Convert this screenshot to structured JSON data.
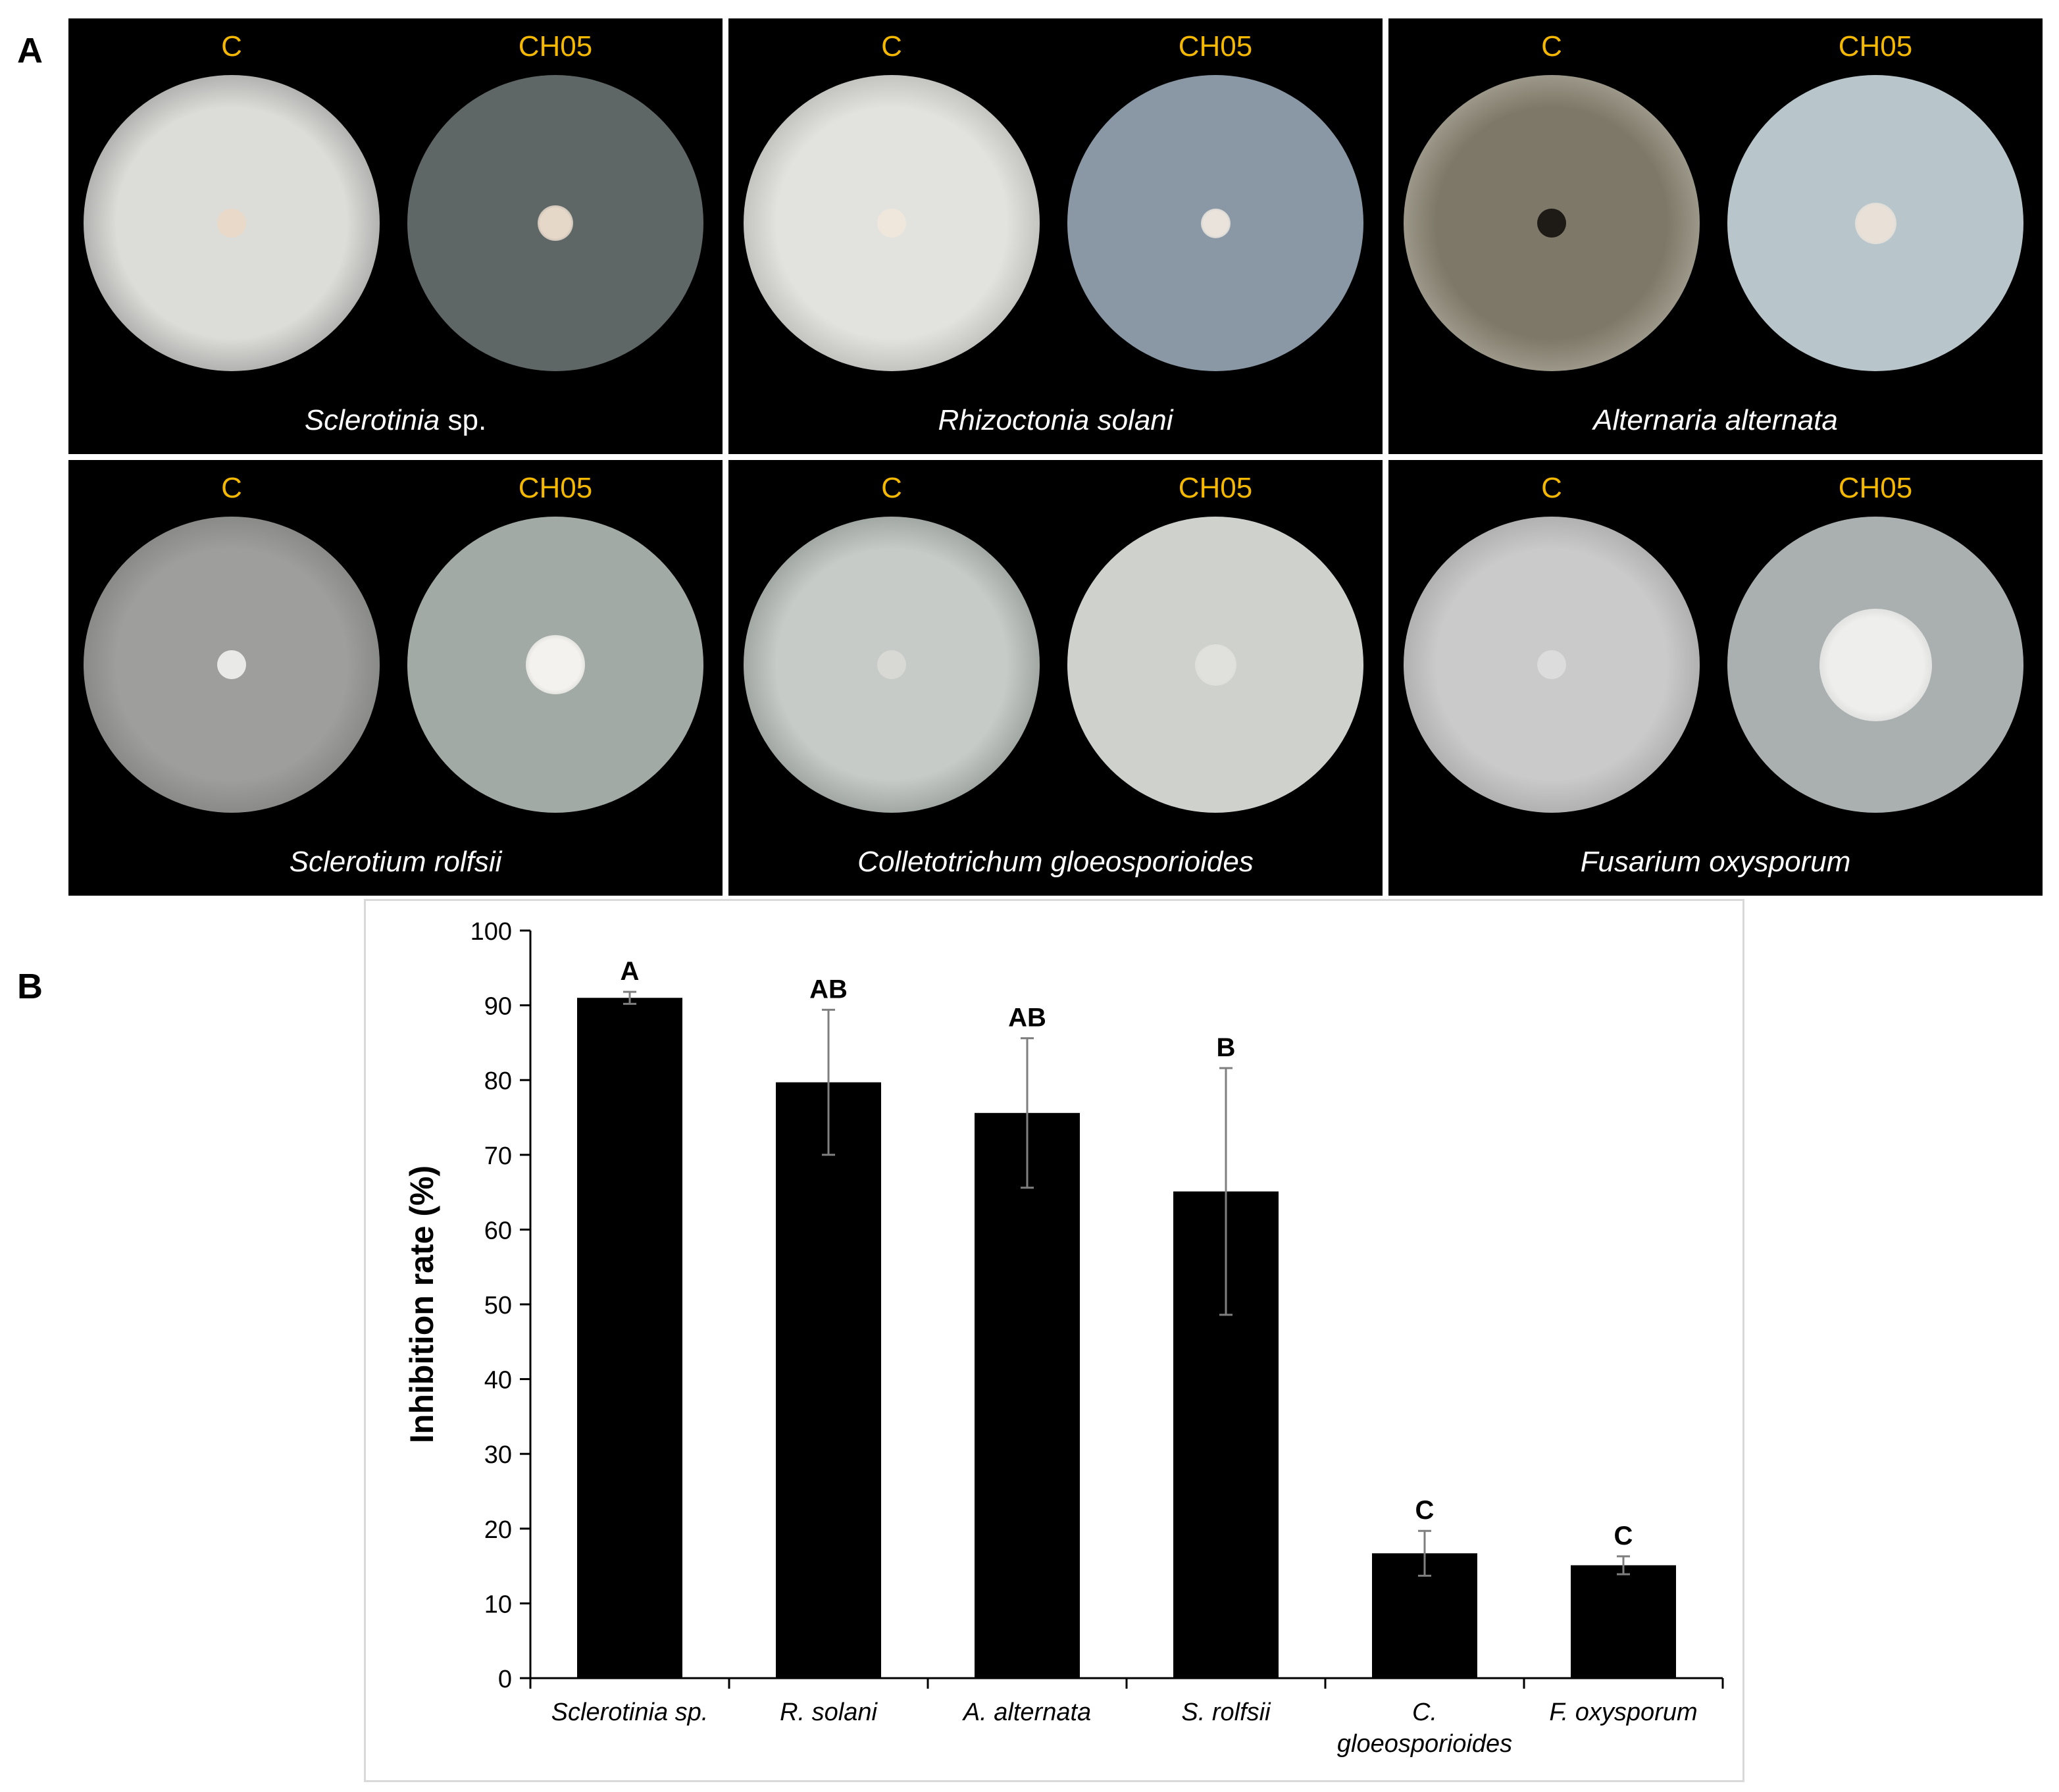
{
  "panel_a": {
    "label": "A",
    "tiles": [
      {
        "species_italic": "Sclerotinia",
        "species_rest": " sp.",
        "control_label": "C",
        "treat_label": "CH05",
        "control_dish": "#dcdcd8",
        "control_edge": "#7a7d7c",
        "treat_dish": "#5f6766",
        "control_plug": "#e8d9c8",
        "treat_plug": "#e6d8c9",
        "treat_plug_size": 0.12
      },
      {
        "species_italic": "Rhizoctonia solani",
        "species_rest": "",
        "control_label": "C",
        "treat_label": "CH05",
        "control_dish": "#e2e2de",
        "control_edge": "#9a9b97",
        "treat_dish": "#8a98a6",
        "control_plug": "#efe7dc",
        "treat_plug": "#e9e3dc",
        "treat_plug_size": 0.1
      },
      {
        "species_italic": "Alternaria alternata",
        "species_rest": "",
        "control_label": "C",
        "treat_label": "CH05",
        "control_dish": "#7d7867",
        "control_edge": "#c6c2b8",
        "treat_dish": "#b8c6cc",
        "control_plug": "#1e1a16",
        "treat_plug": "#e9e1d8",
        "treat_plug_size": 0.14
      },
      {
        "species_italic": "Sclerotium rolfsii",
        "species_rest": "",
        "control_label": "C",
        "treat_label": "CH05",
        "control_dish": "#9e9e9c",
        "control_edge": "#6e716f",
        "treat_dish": "#a2aaa6",
        "control_plug": "#e9e9e7",
        "treat_plug": "#f4f2ee",
        "treat_plug_size": 0.2
      },
      {
        "species_italic": "Colletotrichum gloeosporioides",
        "species_rest": "",
        "control_label": "C",
        "treat_label": "CH05",
        "control_dish": "#c7cbc7",
        "control_edge": "#6f7774",
        "treat_dish": "#cfd1cd",
        "control_plug": "#d8d8d4",
        "treat_plug": "#e0e0dc",
        "treat_plug_size": 0.14
      },
      {
        "species_italic": "Fusarium oxysporum",
        "species_rest": "",
        "control_label": "C",
        "treat_label": "CH05",
        "control_dish": "#cacaca",
        "control_edge": "#8d8f8d",
        "treat_dish": "#aab0b0",
        "control_plug": "#dcdcdc",
        "treat_plug": "#eeeeec",
        "treat_plug_size": 0.38
      }
    ]
  },
  "panel_b": {
    "label": "B"
  },
  "chart_data": {
    "type": "bar",
    "categories": [
      "Sclerotinia sp.",
      "R. solani",
      "A. alternata",
      "S. rolfsii",
      "C. gloeosporioides",
      "F. oxysporum"
    ],
    "category_lines": [
      [
        "Sclerotinia sp."
      ],
      [
        "R. solani"
      ],
      [
        "A. alternata"
      ],
      [
        "S. rolfsii"
      ],
      [
        "C.",
        "gloeosporioides"
      ],
      [
        "F. oxysporum"
      ]
    ],
    "series": [
      {
        "values": [
          91,
          79.7,
          75.6,
          65.1,
          16.7,
          15.1
        ],
        "errors": [
          0.8,
          9.7,
          10,
          16.5,
          3,
          1.2
        ],
        "significance": [
          "A",
          "AB",
          "AB",
          "B",
          "C",
          "C"
        ],
        "color": "#000000"
      }
    ],
    "title": "",
    "xlabel": "",
    "ylabel": "Inhibition rate (%)",
    "ylim": [
      0,
      100
    ],
    "yticks": [
      0,
      10,
      20,
      30,
      40,
      50,
      60,
      70,
      80,
      90,
      100
    ],
    "grid": false,
    "legend": "none",
    "errorbar_color": "#7f7f7f"
  }
}
